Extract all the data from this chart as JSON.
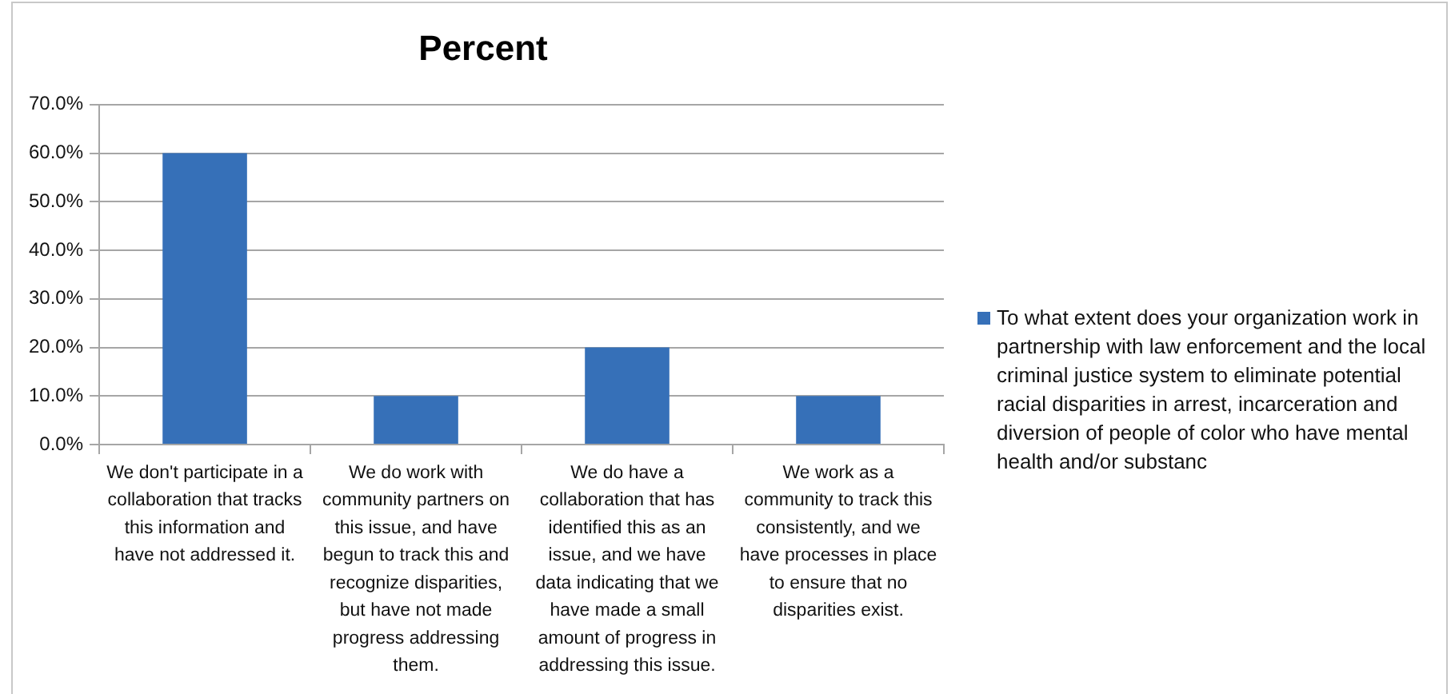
{
  "chart_data": {
    "type": "bar",
    "title": "Percent",
    "categories": [
      "We don't participate in a collaboration that tracks this information and have not addressed it.",
      "We do work with community partners on this issue, and have begun to track this and recognize disparities, but have not made progress addressing them.",
      "We do have a collaboration that has identified this as an issue, and we have data indicating that we have made a small amount of progress in addressing this issue.",
      "We work as a community to track this consistently, and we have processes in place to ensure that no disparities exist."
    ],
    "series": [
      {
        "name": "To what extent does your organization work in partnership with law enforcement and the local criminal justice system to eliminate potential racial disparities in arrest, incarceration and diversion of people of color who have mental health and/or substanc",
        "color": "#3670b8",
        "values": [
          60,
          10,
          20,
          10
        ]
      }
    ],
    "ylim": [
      0,
      70
    ],
    "yticks": [
      {
        "value": 0,
        "label": "0.0%"
      },
      {
        "value": 10,
        "label": "10.0%"
      },
      {
        "value": 20,
        "label": "20.0%"
      },
      {
        "value": 30,
        "label": "30.0%"
      },
      {
        "value": 40,
        "label": "40.0%"
      },
      {
        "value": 50,
        "label": "50.0%"
      },
      {
        "value": 60,
        "label": "60.0%"
      },
      {
        "value": 70,
        "label": "70.0%"
      }
    ],
    "grid": "y",
    "legend": "right"
  }
}
